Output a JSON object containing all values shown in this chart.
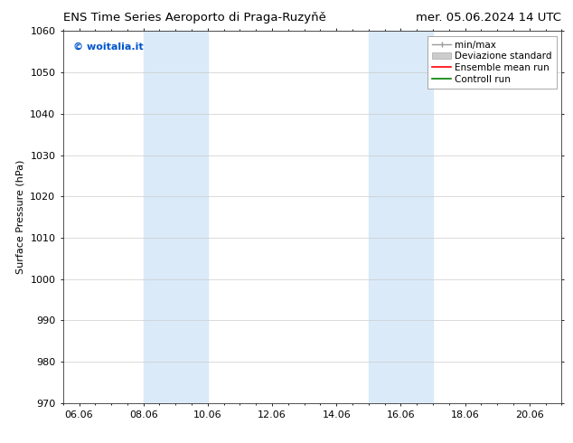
{
  "title_left": "ENS Time Series Aeroporto di Praga-Ruzyňě",
  "title_right": "mer. 05.06.2024 14 UTC",
  "ylabel": "Surface Pressure (hPa)",
  "ylim": [
    970,
    1060
  ],
  "yticks": [
    970,
    980,
    990,
    1000,
    1010,
    1020,
    1030,
    1040,
    1050,
    1060
  ],
  "xticks": [
    6.06,
    8.06,
    10.06,
    12.06,
    14.06,
    16.06,
    18.06,
    20.06
  ],
  "xticklabels": [
    "06.06",
    "08.06",
    "10.06",
    "12.06",
    "14.06",
    "16.06",
    "18.06",
    "20.06"
  ],
  "xlim_start": 5.56,
  "xlim_end": 21.06,
  "shaded_bands": [
    {
      "x_start": 8.06,
      "x_end": 10.06
    },
    {
      "x_start": 15.06,
      "x_end": 17.06
    }
  ],
  "shaded_color": "#daeaf8",
  "watermark": "© woitalia.it",
  "watermark_color": "#0055cc",
  "bg_color": "#ffffff",
  "grid_color": "#cccccc",
  "title_fontsize": 9.5,
  "tick_fontsize": 8,
  "label_fontsize": 8,
  "legend_fontsize": 7.5
}
